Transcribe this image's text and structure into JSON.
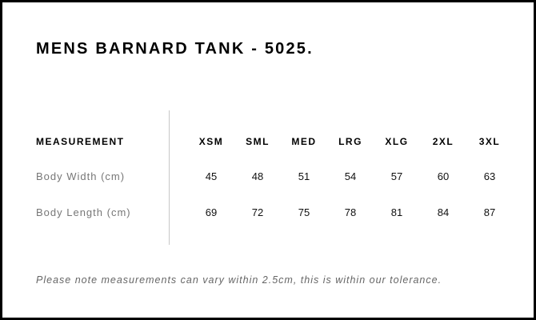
{
  "title": "MENS BARNARD TANK - 5025.",
  "table": {
    "header_label": "MEASUREMENT",
    "sizes": [
      "XSM",
      "SML",
      "MED",
      "LRG",
      "XLG",
      "2XL",
      "3XL"
    ],
    "rows": [
      {
        "label": "Body Width (cm)",
        "values": [
          "45",
          "48",
          "51",
          "54",
          "57",
          "60",
          "63"
        ]
      },
      {
        "label": "Body Length (cm)",
        "values": [
          "69",
          "72",
          "75",
          "78",
          "81",
          "84",
          "87"
        ]
      }
    ]
  },
  "note": "Please note measurements can vary within 2.5cm, this is within our tolerance."
}
